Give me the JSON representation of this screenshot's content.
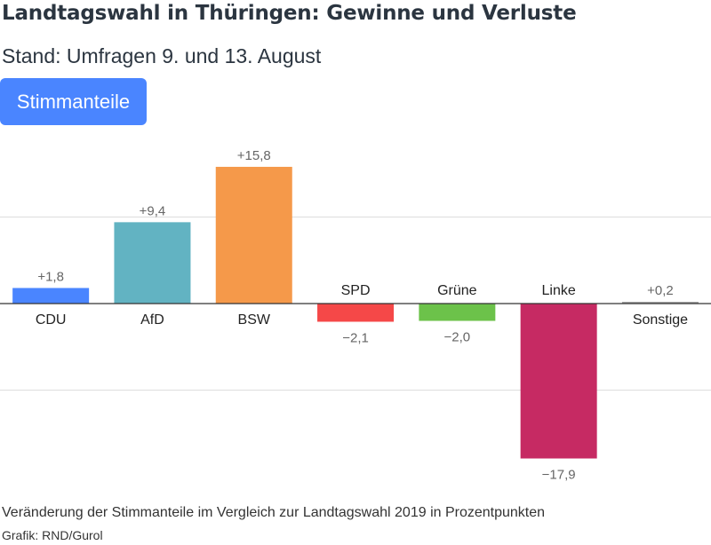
{
  "header": {
    "title": "Landtagswahl in Thüringen: Gewinne und Verluste",
    "subtitle": "Stand: Umfragen 9. und 13. August"
  },
  "tabs": {
    "active_label": "Stimmanteile",
    "active_color": "#4a85ff"
  },
  "footer": {
    "note": "Veränderung der Stimmanteile im Vergleich zur Landtagswahl 2019 in Prozentpunkten",
    "source": "Grafik: RND/Gurol"
  },
  "chart_data": {
    "type": "bar",
    "title": "Landtagswahl in Thüringen: Gewinne und Verluste",
    "subtitle": "Stand: Umfragen 9. und 13. August",
    "xlabel": "",
    "ylabel": "",
    "categories": [
      "CDU",
      "AfD",
      "BSW",
      "SPD",
      "Grüne",
      "Linke",
      "Sonstige"
    ],
    "values": [
      1.8,
      9.4,
      15.8,
      -2.1,
      -2.0,
      -17.9,
      0.2
    ],
    "value_labels": [
      "+1,8",
      "+9,4",
      "+15,8",
      "−2,1",
      "−2,0",
      "−17,9",
      "+0,2"
    ],
    "colors": [
      "#4a85ff",
      "#62b3c2",
      "#f5994a",
      "#f54848",
      "#6cc24a",
      "#c62a63",
      "#9e9e9e"
    ],
    "gridlines": [
      -10,
      0,
      10
    ],
    "grid": true,
    "legend": "none"
  }
}
